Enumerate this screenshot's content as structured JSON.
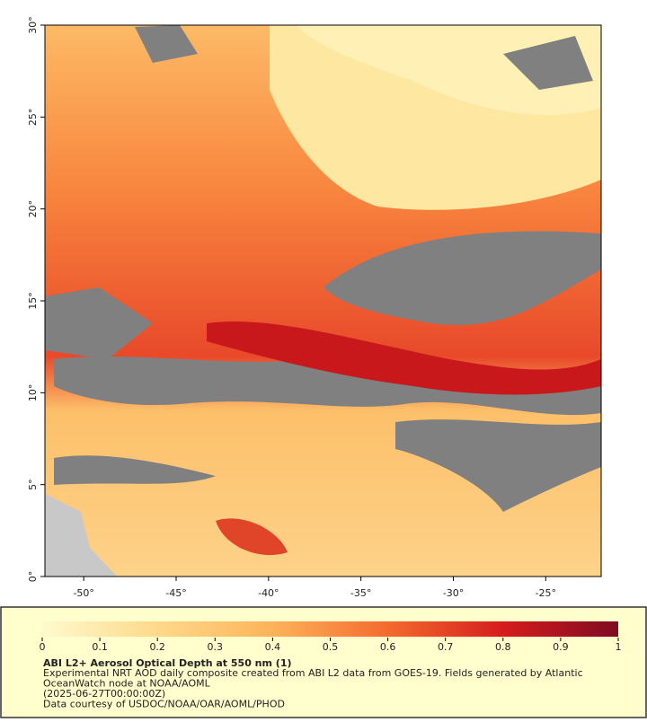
{
  "map": {
    "xlim": [
      -52.1,
      -22
    ],
    "ylim": [
      0,
      30
    ],
    "xticks": [
      {
        "value": -50,
        "label": "-50°"
      },
      {
        "value": -45,
        "label": "-45°"
      },
      {
        "value": -40,
        "label": "-40°"
      },
      {
        "value": -35,
        "label": "-35°"
      },
      {
        "value": -30,
        "label": "-30°"
      },
      {
        "value": -25,
        "label": "-25°"
      }
    ],
    "yticks": [
      {
        "value": 0,
        "label": "0°"
      },
      {
        "value": 5,
        "label": "5°"
      },
      {
        "value": 10,
        "label": "10°"
      },
      {
        "value": 15,
        "label": "15°"
      },
      {
        "value": 20,
        "label": "20°"
      },
      {
        "value": 25,
        "label": "25°"
      },
      {
        "value": 30,
        "label": "30°"
      }
    ]
  },
  "colorbar": {
    "lim": [
      0,
      1
    ],
    "ticks": [
      0,
      0.1,
      0.2,
      0.3,
      0.4,
      0.5,
      0.6,
      0.7,
      0.8,
      0.9,
      1
    ]
  },
  "caption": {
    "title": "ABI L2+ Aerosol Optical Depth at 550 nm (1)",
    "lines": [
      "Experimental NRT AOD daily composite created from ABI L2 data from GOES-19. Fields generated by Atlantic",
      "OceanWatch node at NOAA/AOML",
      "(2025-06-27T00:00:00Z)",
      "Data courtesy of USDOC/NOAA/OAR/AOML/PHOD"
    ]
  }
}
